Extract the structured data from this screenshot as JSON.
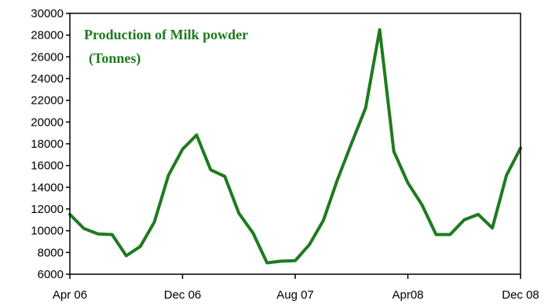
{
  "chart_data": {
    "type": "line",
    "title_lines": [
      "Production of Milk powder",
      "(Tonnes)"
    ],
    "xlabel": "",
    "ylabel": "",
    "x_tick_labels": [
      "Apr 06",
      "Dec 06",
      "Aug 07",
      "Apr08",
      "Dec 08"
    ],
    "ylim": [
      6000,
      30000
    ],
    "y_ticks": [
      6000,
      8000,
      10000,
      12000,
      14000,
      16000,
      18000,
      20000,
      22000,
      24000,
      26000,
      28000,
      30000
    ],
    "y_tick_labels": [
      "6000",
      "8000",
      "10000",
      "12000",
      "14000",
      "16000",
      "18000",
      "20000",
      "22000",
      "24000",
      "26000",
      "28000",
      "30000"
    ],
    "grid": false,
    "line_color": "#1f7a1f",
    "x": [
      "Apr 06",
      "May 06",
      "Jun 06",
      "Jul 06",
      "Aug 06",
      "Sep 06",
      "Oct 06",
      "Nov 06",
      "Dec 06",
      "Jan 07",
      "Feb 07",
      "Mar 07",
      "Apr 07",
      "May 07",
      "Jun 07",
      "Jul 07",
      "Aug 07",
      "Sep 07",
      "Oct 07",
      "Nov 07",
      "Dec 07",
      "Jan 08",
      "Feb 08",
      "Mar 08",
      "Apr 08",
      "May 08",
      "Jun 08",
      "Jul 08",
      "Aug 08",
      "Sep 08",
      "Oct 08",
      "Nov 08",
      "Dec 08"
    ],
    "series": [
      {
        "values": [
          11500,
          10200,
          9700,
          9650,
          7700,
          8550,
          10800,
          15100,
          17500,
          18800,
          15600,
          15000,
          11600,
          9800,
          7050,
          7200,
          7250,
          8700,
          10950,
          14700,
          18050,
          21300,
          28500,
          17300,
          14400,
          12400,
          9650,
          9650,
          11000,
          11500,
          10250,
          15100,
          17600
        ]
      }
    ]
  }
}
